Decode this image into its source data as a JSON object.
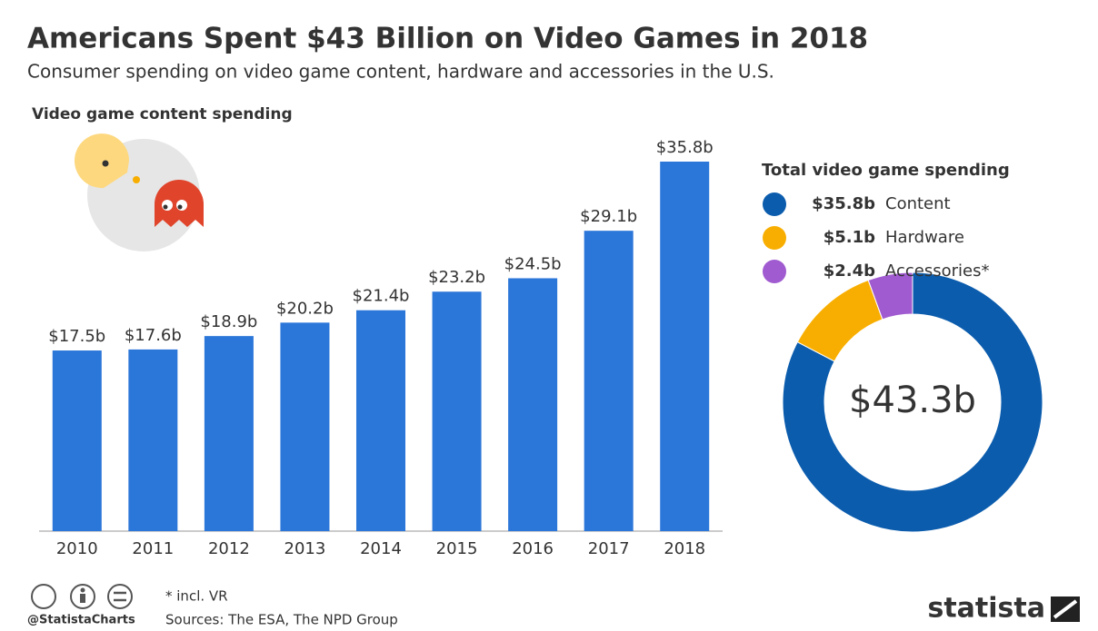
{
  "header": {
    "title": "Americans Spent $43 Billion on Video Games in 2018",
    "subtitle": "Consumer spending on video game content, hardware and accessories in the U.S."
  },
  "chart_data": [
    {
      "type": "bar",
      "title": "Video game content spending",
      "categories": [
        "2010",
        "2011",
        "2012",
        "2013",
        "2014",
        "2015",
        "2016",
        "2017",
        "2018"
      ],
      "values": [
        17.5,
        17.6,
        18.9,
        20.2,
        21.4,
        23.2,
        24.5,
        29.1,
        35.8
      ],
      "value_labels": [
        "$17.5b",
        "$17.6b",
        "$18.9b",
        "$20.2b",
        "$21.4b",
        "$23.2b",
        "$24.5b",
        "$29.1b",
        "$35.8b"
      ],
      "color": "#2b76d9"
    },
    {
      "type": "donut",
      "title": "Total video game spending",
      "categories": [
        "Content",
        "Hardware",
        "Accessories*"
      ],
      "values": [
        35.8,
        5.1,
        2.4
      ],
      "value_labels": [
        "$35.8b",
        "$5.1b",
        "$2.4b"
      ],
      "colors": [
        "#0b5cad",
        "#f8ae00",
        "#a05bd0"
      ],
      "total": 43.3,
      "total_label": "$43.3b"
    }
  ],
  "footer": {
    "note": "* incl. VR",
    "source": "Sources: The ESA, The NPD Group",
    "handle": "@StatistaCharts",
    "brand": "statista"
  }
}
